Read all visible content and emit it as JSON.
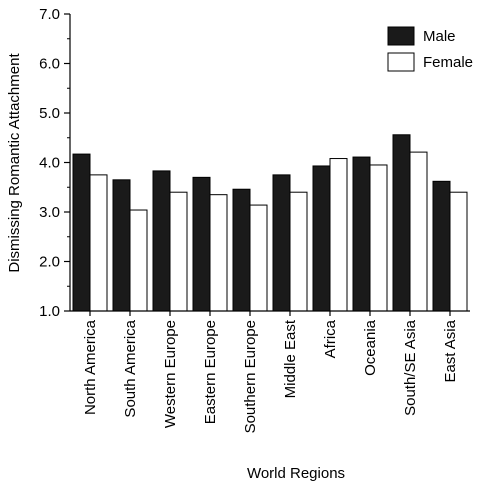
{
  "chart_data": {
    "type": "bar",
    "xlabel": "World Regions",
    "ylabel": "Dismissing Romantic Attachment",
    "ylim": [
      1.0,
      7.0
    ],
    "yticks": [
      "1.0",
      "2.0",
      "3.0",
      "4.0",
      "5.0",
      "6.0",
      "7.0"
    ],
    "categories": [
      "North America",
      "South America",
      "Western Europe",
      "Eastern Europe",
      "Southern Europe",
      "Middle East",
      "Africa",
      "Oceania",
      "South/SE Asia",
      "East Asia"
    ],
    "series": [
      {
        "name": "Male",
        "color": "#1a1a1a",
        "values": [
          4.17,
          3.65,
          3.83,
          3.7,
          3.46,
          3.75,
          3.93,
          4.11,
          4.56,
          3.62
        ]
      },
      {
        "name": "Female",
        "color": "#ffffff",
        "values": [
          3.75,
          3.04,
          3.4,
          3.35,
          3.14,
          3.4,
          4.08,
          3.95,
          4.21,
          3.4
        ]
      }
    ],
    "legend_position": "top-right",
    "grid": false
  }
}
